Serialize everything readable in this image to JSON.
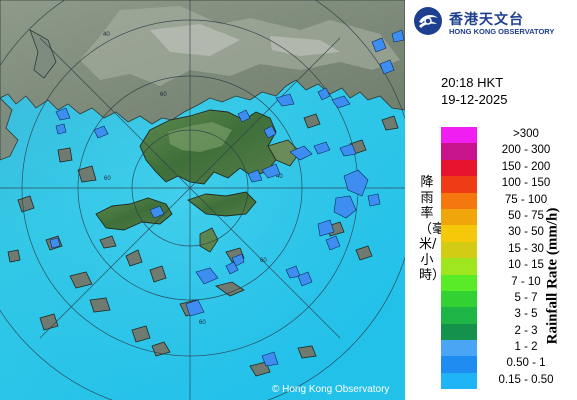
{
  "organization": {
    "name_zh": "香港天文台",
    "name_en": "HONG KONG OBSERVATORY"
  },
  "timestamp": {
    "time": "20:18 HKT",
    "date": "19-12-2025"
  },
  "legend": {
    "title_zh": "降雨率（毫米/小時）",
    "title_en": "Rainfall Rate (mm/h)",
    "items": [
      {
        "label": ">300",
        "color": "#f01ef0"
      },
      {
        "label": "200 - 300",
        "color": "#c8148c"
      },
      {
        "label": "150 - 200",
        "color": "#e6142d"
      },
      {
        "label": "100 - 150",
        "color": "#f03c14"
      },
      {
        "label": "75 - 100",
        "color": "#f5780f"
      },
      {
        "label": "50 - 75",
        "color": "#f0a50a"
      },
      {
        "label": "30 - 50",
        "color": "#f5c80a"
      },
      {
        "label": "15 - 30",
        "color": "#d2cd14"
      },
      {
        "label": "10 - 15",
        "color": "#a0e61e"
      },
      {
        "label": "7 - 10",
        "color": "#5aeb28"
      },
      {
        "label": "5 - 7",
        "color": "#32d232"
      },
      {
        "label": "3 - 5",
        "color": "#1eb446"
      },
      {
        "label": "2 - 3",
        "color": "#14914b"
      },
      {
        "label": "1 - 2",
        "color": "#4ba5f5"
      },
      {
        "label": "0.50 - 1",
        "color": "#1e8cf0"
      },
      {
        "label": "0.15 - 0.50",
        "color": "#1eb4f5"
      }
    ]
  },
  "map": {
    "range_ring_labels": [
      "40",
      "60",
      "60",
      "40",
      "60",
      "60"
    ],
    "copyright": "© Hong Kong Observatory"
  }
}
